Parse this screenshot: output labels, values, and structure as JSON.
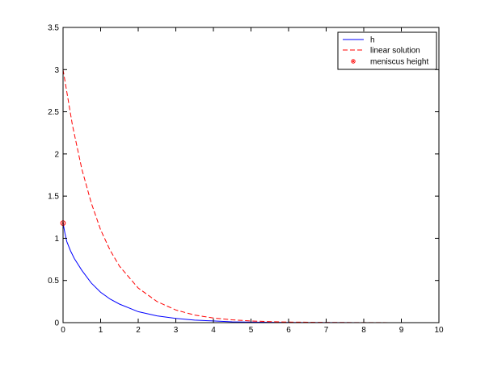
{
  "chart_data": {
    "type": "line",
    "title": "",
    "xlabel": "",
    "ylabel": "",
    "xlim": [
      0,
      10
    ],
    "ylim": [
      0,
      3.5
    ],
    "xticks": [
      0,
      1,
      2,
      3,
      4,
      5,
      6,
      7,
      8,
      9,
      10
    ],
    "yticks": [
      0,
      0.5,
      1,
      1.5,
      2,
      2.5,
      3,
      3.5
    ],
    "xtick_labels": [
      "0",
      "1",
      "2",
      "3",
      "4",
      "5",
      "6",
      "7",
      "8",
      "9",
      "10"
    ],
    "ytick_labels": [
      "0",
      "0.5",
      "1",
      "1.5",
      "2",
      "2.5",
      "3",
      "3.5"
    ],
    "grid": false,
    "legend_position": "top-right",
    "series": [
      {
        "name": "h",
        "style": "solid",
        "color": "#0000ff",
        "x": [
          0,
          0.05,
          0.1,
          0.2,
          0.3,
          0.5,
          0.75,
          1.0,
          1.25,
          1.5,
          2.0,
          2.5,
          3.0,
          3.5,
          4.0,
          4.5,
          5.0,
          6.0,
          7.0,
          8.0,
          9.0,
          10.0
        ],
        "y": [
          1.18,
          1.06,
          0.96,
          0.85,
          0.76,
          0.62,
          0.47,
          0.36,
          0.28,
          0.22,
          0.13,
          0.08,
          0.05,
          0.03,
          0.02,
          0.01,
          0.006,
          0.002,
          0.001,
          0.0003,
          0.0001,
          0.0
        ]
      },
      {
        "name": "linear solution",
        "style": "dashed",
        "color": "#ff0000",
        "x": [
          0,
          0.25,
          0.5,
          0.75,
          1.0,
          1.25,
          1.5,
          2.0,
          2.5,
          3.0,
          3.5,
          4.0,
          4.5,
          5.0,
          5.5,
          6.0,
          7.0,
          8.0,
          9.0,
          10.0
        ],
        "y": [
          3.0,
          2.34,
          1.82,
          1.42,
          1.1,
          0.86,
          0.67,
          0.41,
          0.25,
          0.15,
          0.09,
          0.055,
          0.033,
          0.02,
          0.012,
          0.007,
          0.003,
          0.001,
          0.0004,
          0.0001
        ]
      },
      {
        "name": "meniscus height",
        "style": "marker",
        "color": "#ff0000",
        "x": [
          0
        ],
        "y": [
          1.18
        ]
      }
    ]
  }
}
